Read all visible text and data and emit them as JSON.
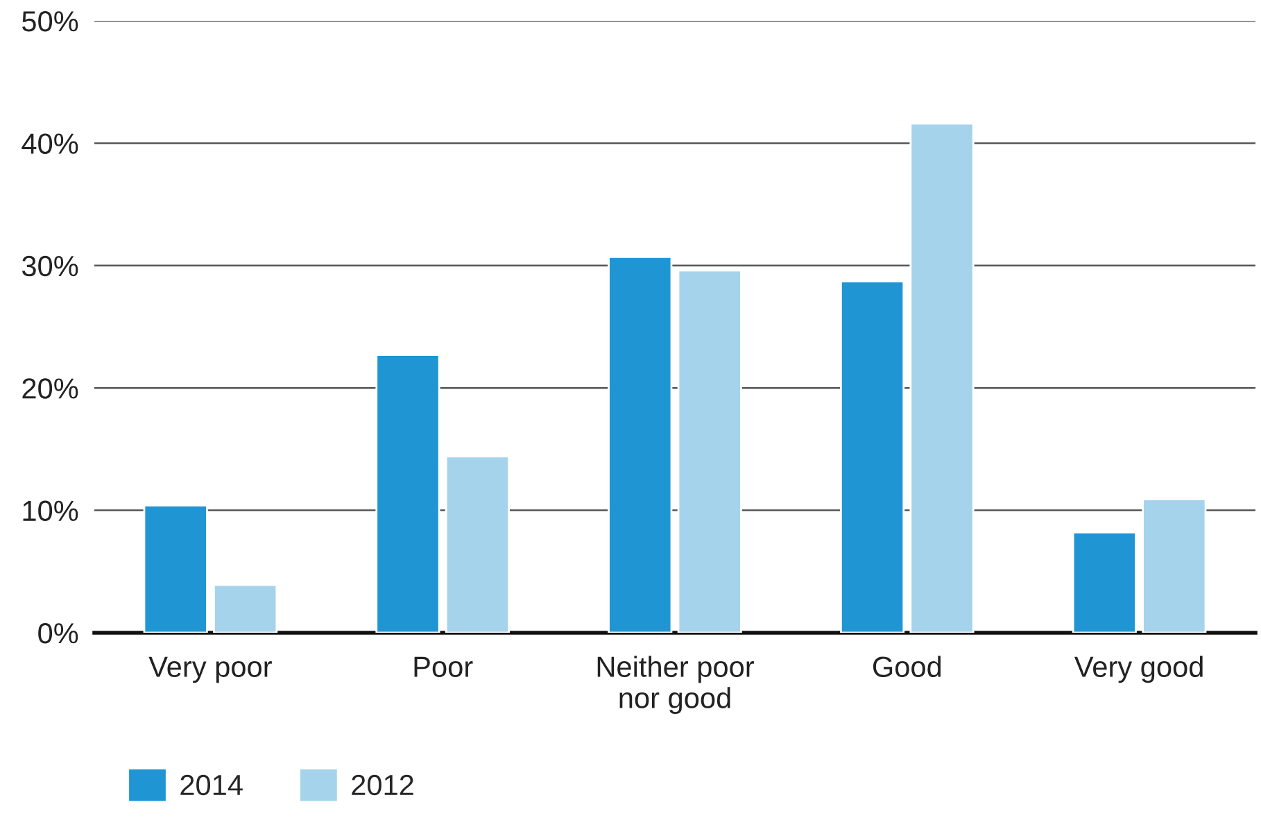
{
  "chart_data": {
    "type": "bar",
    "categories": [
      "Very poor",
      "Poor",
      "Neither poor\nnor good",
      "Good",
      "Very good"
    ],
    "series": [
      {
        "name": "2014",
        "color": "#1f95d4",
        "values": [
          10.4,
          22.7,
          30.7,
          28.7,
          8.2
        ]
      },
      {
        "name": "2012",
        "color": "#a5d3ec",
        "values": [
          3.9,
          14.4,
          29.6,
          41.6,
          10.9
        ]
      }
    ],
    "ylim": [
      0,
      50
    ],
    "yticks": [
      {
        "value": 0,
        "label": "0%"
      },
      {
        "value": 10,
        "label": "10%"
      },
      {
        "value": 20,
        "label": "20%"
      },
      {
        "value": 30,
        "label": "30%"
      },
      {
        "value": 40,
        "label": "40%"
      },
      {
        "value": 50,
        "label": "50%"
      }
    ],
    "grid": "y",
    "legend": "bottom left"
  }
}
